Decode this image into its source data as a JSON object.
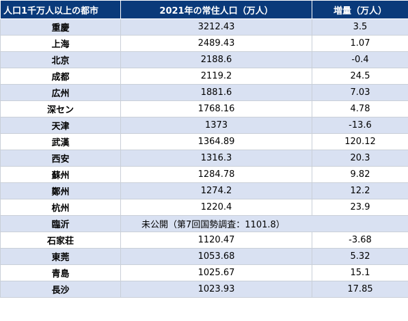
{
  "headers": {
    "city": "人口1千万人以上の都市",
    "population": "2021年の常住人口（万人）",
    "increase": "増量（万人）"
  },
  "rows": [
    {
      "city": "重慶",
      "population": "3212.43",
      "increase": "3.5"
    },
    {
      "city": "上海",
      "population": "2489.43",
      "increase": "1.07"
    },
    {
      "city": "北京",
      "population": "2188.6",
      "increase": "-0.4"
    },
    {
      "city": "成都",
      "population": "2119.2",
      "increase": "24.5"
    },
    {
      "city": "広州",
      "population": "1881.6",
      "increase": "7.03"
    },
    {
      "city": "深セン",
      "population": "1768.16",
      "increase": "4.78"
    },
    {
      "city": "天津",
      "population": "1373",
      "increase": "-13.6"
    },
    {
      "city": "武漢",
      "population": "1364.89",
      "increase": "120.12"
    },
    {
      "city": "西安",
      "population": "1316.3",
      "increase": "20.3"
    },
    {
      "city": "蘇州",
      "population": "1284.78",
      "increase": "9.82"
    },
    {
      "city": "鄭州",
      "population": "1274.2",
      "increase": "12.2"
    },
    {
      "city": "杭州",
      "population": "1220.4",
      "increase": "23.9"
    },
    {
      "city": "臨沂",
      "population": "未公開（第7回国勢調査：1101.8）",
      "increase": ""
    },
    {
      "city": "石家荘",
      "population": "1120.47",
      "increase": "-3.68"
    },
    {
      "city": "東莞",
      "population": "1053.68",
      "increase": "5.32"
    },
    {
      "city": "青島",
      "population": "1025.67",
      "increase": "15.1"
    },
    {
      "city": "長沙",
      "population": "1023.93",
      "increase": "17.85"
    }
  ]
}
